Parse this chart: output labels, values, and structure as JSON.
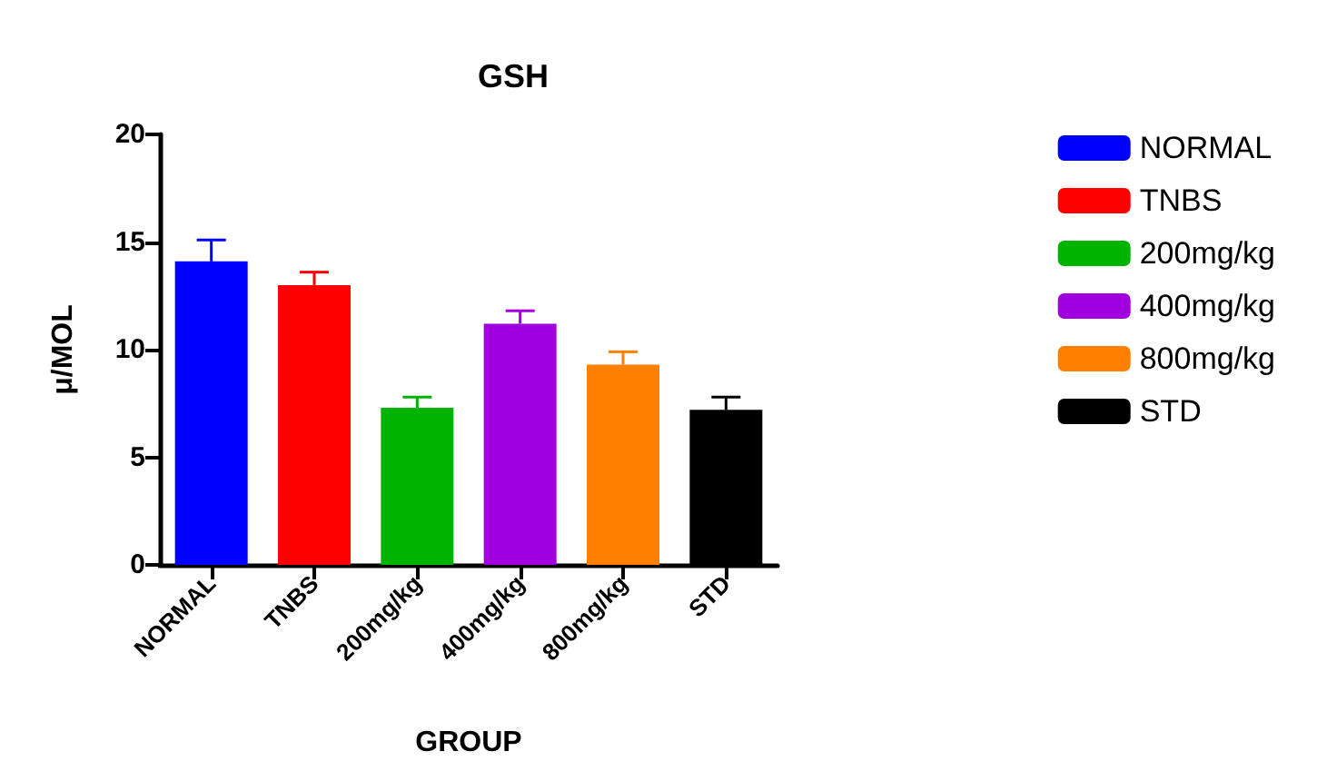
{
  "chart_data": {
    "type": "bar",
    "title": "GSH",
    "xlabel": "GROUP",
    "ylabel": "μ/MOL",
    "categories": [
      "NORMAL",
      "TNBS",
      "200mg/kg",
      "400mg/kg",
      "800mg/kg",
      "STD"
    ],
    "series": [
      {
        "name": "NORMAL",
        "color": "#0000ff",
        "values": [
          14.1,
          null,
          null,
          null,
          null,
          null
        ],
        "errors": [
          [
            14.1,
            15.1
          ],
          null,
          null,
          null,
          null,
          null
        ]
      },
      {
        "name": "TNBS",
        "color": "#ff0000",
        "values": [
          null,
          13.0,
          null,
          null,
          null,
          null
        ],
        "errors": [
          null,
          [
            13.0,
            13.6
          ],
          null,
          null,
          null,
          null
        ]
      },
      {
        "name": "200mg/kg",
        "color": "#00b300",
        "values": [
          null,
          null,
          7.3,
          null,
          null,
          null
        ],
        "errors": [
          null,
          null,
          [
            7.3,
            7.8
          ],
          null,
          null,
          null
        ]
      },
      {
        "name": "400mg/kg",
        "color": "#a000e0",
        "values": [
          null,
          null,
          null,
          11.2,
          null,
          null
        ],
        "errors": [
          null,
          null,
          null,
          [
            11.2,
            11.8
          ],
          null,
          null
        ]
      },
      {
        "name": "800mg/kg",
        "color": "#ff8000",
        "values": [
          null,
          null,
          null,
          null,
          9.3,
          null
        ],
        "errors": [
          null,
          null,
          null,
          null,
          [
            9.3,
            9.9
          ],
          null
        ]
      },
      {
        "name": "STD",
        "color": "#000000",
        "values": [
          null,
          null,
          null,
          null,
          null,
          7.2
        ],
        "errors": [
          null,
          null,
          null,
          null,
          null,
          [
            7.2,
            7.8
          ]
        ]
      }
    ],
    "ylim": [
      0,
      20
    ],
    "yticks": [
      0,
      5,
      10,
      15,
      20
    ],
    "grid": false,
    "legend": "right"
  }
}
